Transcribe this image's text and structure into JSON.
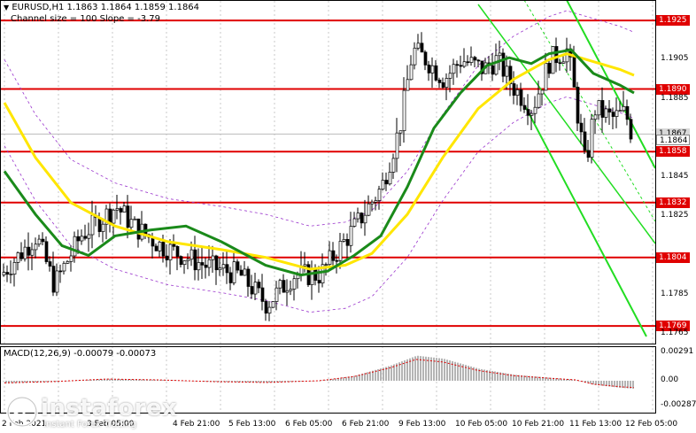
{
  "header": {
    "symbol_line": "EURUSD,H1  1.1863 1.1864 1.1859 1.1864",
    "channel_line": "Channel size = 100 Slope = -3.79"
  },
  "macd": {
    "label": "MACD(12,26,9) -0.00079 -0.00073"
  },
  "watermark": {
    "brand": "instaforex",
    "sub": "Instant Forex Trading"
  },
  "levels": [
    {
      "value": "1.1925",
      "style": "red"
    },
    {
      "value": "1.1890",
      "style": "red"
    },
    {
      "value": "1.1867",
      "style": "gray"
    },
    {
      "value": "1.1864",
      "style": "white"
    },
    {
      "value": "1.1858",
      "style": "red"
    },
    {
      "value": "1.1832",
      "style": "red"
    },
    {
      "value": "1.1804",
      "style": "red"
    },
    {
      "value": "1.1769",
      "style": "red"
    }
  ],
  "price_ticks": [
    "1.1905",
    "1.1885",
    "1.1845",
    "1.1825",
    "1.1785",
    "1.1765"
  ],
  "macd_ticks": [
    "0.00291",
    "0.00",
    "-0.00287"
  ],
  "time_labels": [
    "2 Feb 2021",
    "3 Feb 05:00",
    "4 Feb 21:00",
    "5 Feb 13:00",
    "6 Feb 05:00",
    "6 Feb 21:00",
    "9 Feb 13:00",
    "10 Feb 05:00",
    "10 Feb 21:00",
    "11 Feb 13:00",
    "12 Feb 05:00"
  ],
  "chart_data": {
    "type": "candlestick",
    "title": "EURUSD,H1",
    "ylim": [
      1.176,
      1.1935
    ],
    "horizontal_levels": [
      1.1925,
      1.189,
      1.1858,
      1.1832,
      1.1804,
      1.1769
    ],
    "last_price": 1.1864,
    "moving_averages": [
      {
        "name": "MA slow",
        "color": "#ffe600"
      },
      {
        "name": "MA fast",
        "color": "#1a8a1a"
      }
    ],
    "colors": {
      "level": "#e00000",
      "channel": "#22dd22",
      "envelope": "#9933cc"
    }
  }
}
